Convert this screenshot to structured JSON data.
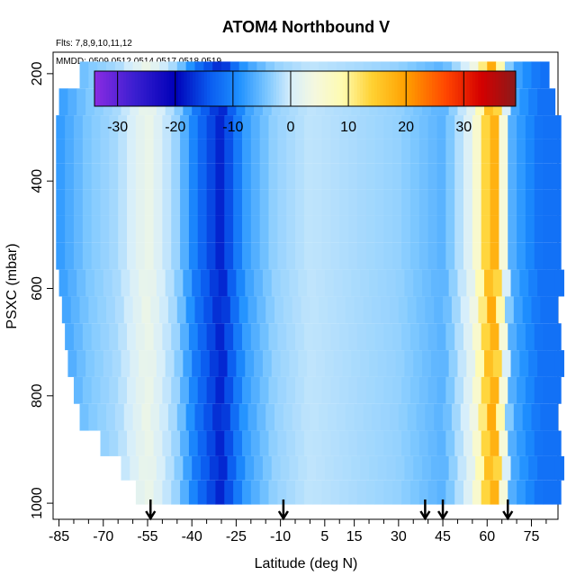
{
  "chart_data": {
    "type": "heatmap",
    "title": "ATOM4 Northbound V",
    "flights_note": "Flts: 7,8,9,10,11,12",
    "dates_note": "MMDD: 0509,0512,0514,0517,0518,0519",
    "xlabel": "Latitude (deg N)",
    "ylabel": "PSXC (mbar)",
    "xlim": [
      -87,
      84
    ],
    "ylim": [
      1030,
      160
    ],
    "x_ticks": [
      -85,
      -70,
      -55,
      -40,
      -25,
      -10,
      5,
      15,
      30,
      45,
      60,
      75
    ],
    "x_minor_ticks": [
      -80,
      -75,
      -65,
      -60,
      -50,
      -45,
      -35,
      -30,
      -20,
      -15,
      -5,
      0,
      10,
      20,
      25,
      35,
      40,
      50,
      55,
      65,
      70,
      80
    ],
    "y_ticks": [
      200,
      400,
      600,
      800,
      1000
    ],
    "colorbar": {
      "range": [
        -34,
        39
      ],
      "ticks": [
        -30,
        -20,
        -10,
        0,
        10,
        20,
        30
      ],
      "colors": [
        {
          "v": -34,
          "c": "#8a2be2"
        },
        {
          "v": -27,
          "c": "#3a1fd0"
        },
        {
          "v": -20,
          "c": "#0000b8"
        },
        {
          "v": -14,
          "c": "#0a5cf0"
        },
        {
          "v": -9,
          "c": "#1e90ff"
        },
        {
          "v": -4,
          "c": "#7ec8ff"
        },
        {
          "v": 0,
          "c": "#d6eefb"
        },
        {
          "v": 4,
          "c": "#f4f8e0"
        },
        {
          "v": 9,
          "c": "#fffbb0"
        },
        {
          "v": 14,
          "c": "#ffd233"
        },
        {
          "v": 20,
          "c": "#ffa000"
        },
        {
          "v": 27,
          "c": "#ff4500"
        },
        {
          "v": 33,
          "c": "#d40000"
        },
        {
          "v": 39,
          "c": "#8b1a1a"
        }
      ]
    },
    "arrows_lat": [
      -54,
      -9,
      39,
      45,
      67
    ],
    "level_bands": [
      {
        "p": 200,
        "lat": [
          -78,
          80
        ]
      },
      {
        "p": 255,
        "lat": [
          -85,
          83
        ]
      },
      {
        "p": 300,
        "lat": [
          -86,
          84
        ]
      },
      {
        "p": 345,
        "lat": [
          -86,
          84
        ]
      },
      {
        "p": 390,
        "lat": [
          -86,
          84
        ]
      },
      {
        "p": 440,
        "lat": [
          -86,
          84
        ]
      },
      {
        "p": 490,
        "lat": [
          -86,
          84
        ]
      },
      {
        "p": 540,
        "lat": [
          -86,
          84
        ]
      },
      {
        "p": 590,
        "lat": [
          -85,
          84
        ]
      },
      {
        "p": 640,
        "lat": [
          -84,
          84
        ]
      },
      {
        "p": 690,
        "lat": [
          -83,
          84
        ]
      },
      {
        "p": 740,
        "lat": [
          -82,
          84
        ]
      },
      {
        "p": 790,
        "lat": [
          -80,
          84
        ]
      },
      {
        "p": 840,
        "lat": [
          -78,
          84
        ]
      },
      {
        "p": 890,
        "lat": [
          -71,
          84
        ]
      },
      {
        "p": 935,
        "lat": [
          -64,
          84
        ]
      },
      {
        "p": 980,
        "lat": [
          -59,
          84
        ]
      }
    ],
    "value_field": [
      {
        "lat": -85,
        "v": -8
      },
      {
        "lat": -75,
        "v": -4
      },
      {
        "lat": -65,
        "v": -2
      },
      {
        "lat": -55,
        "v": 3
      },
      {
        "lat": -45,
        "v": -3
      },
      {
        "lat": -38,
        "v": -12
      },
      {
        "lat": -30,
        "v": -18
      },
      {
        "lat": -22,
        "v": -8
      },
      {
        "lat": -12,
        "v": -3
      },
      {
        "lat": 0,
        "v": -1
      },
      {
        "lat": 15,
        "v": -2
      },
      {
        "lat": 30,
        "v": -3
      },
      {
        "lat": 45,
        "v": -6
      },
      {
        "lat": 55,
        "v": 2
      },
      {
        "lat": 62,
        "v": 20
      },
      {
        "lat": 68,
        "v": -6
      },
      {
        "lat": 78,
        "v": -12
      }
    ]
  }
}
